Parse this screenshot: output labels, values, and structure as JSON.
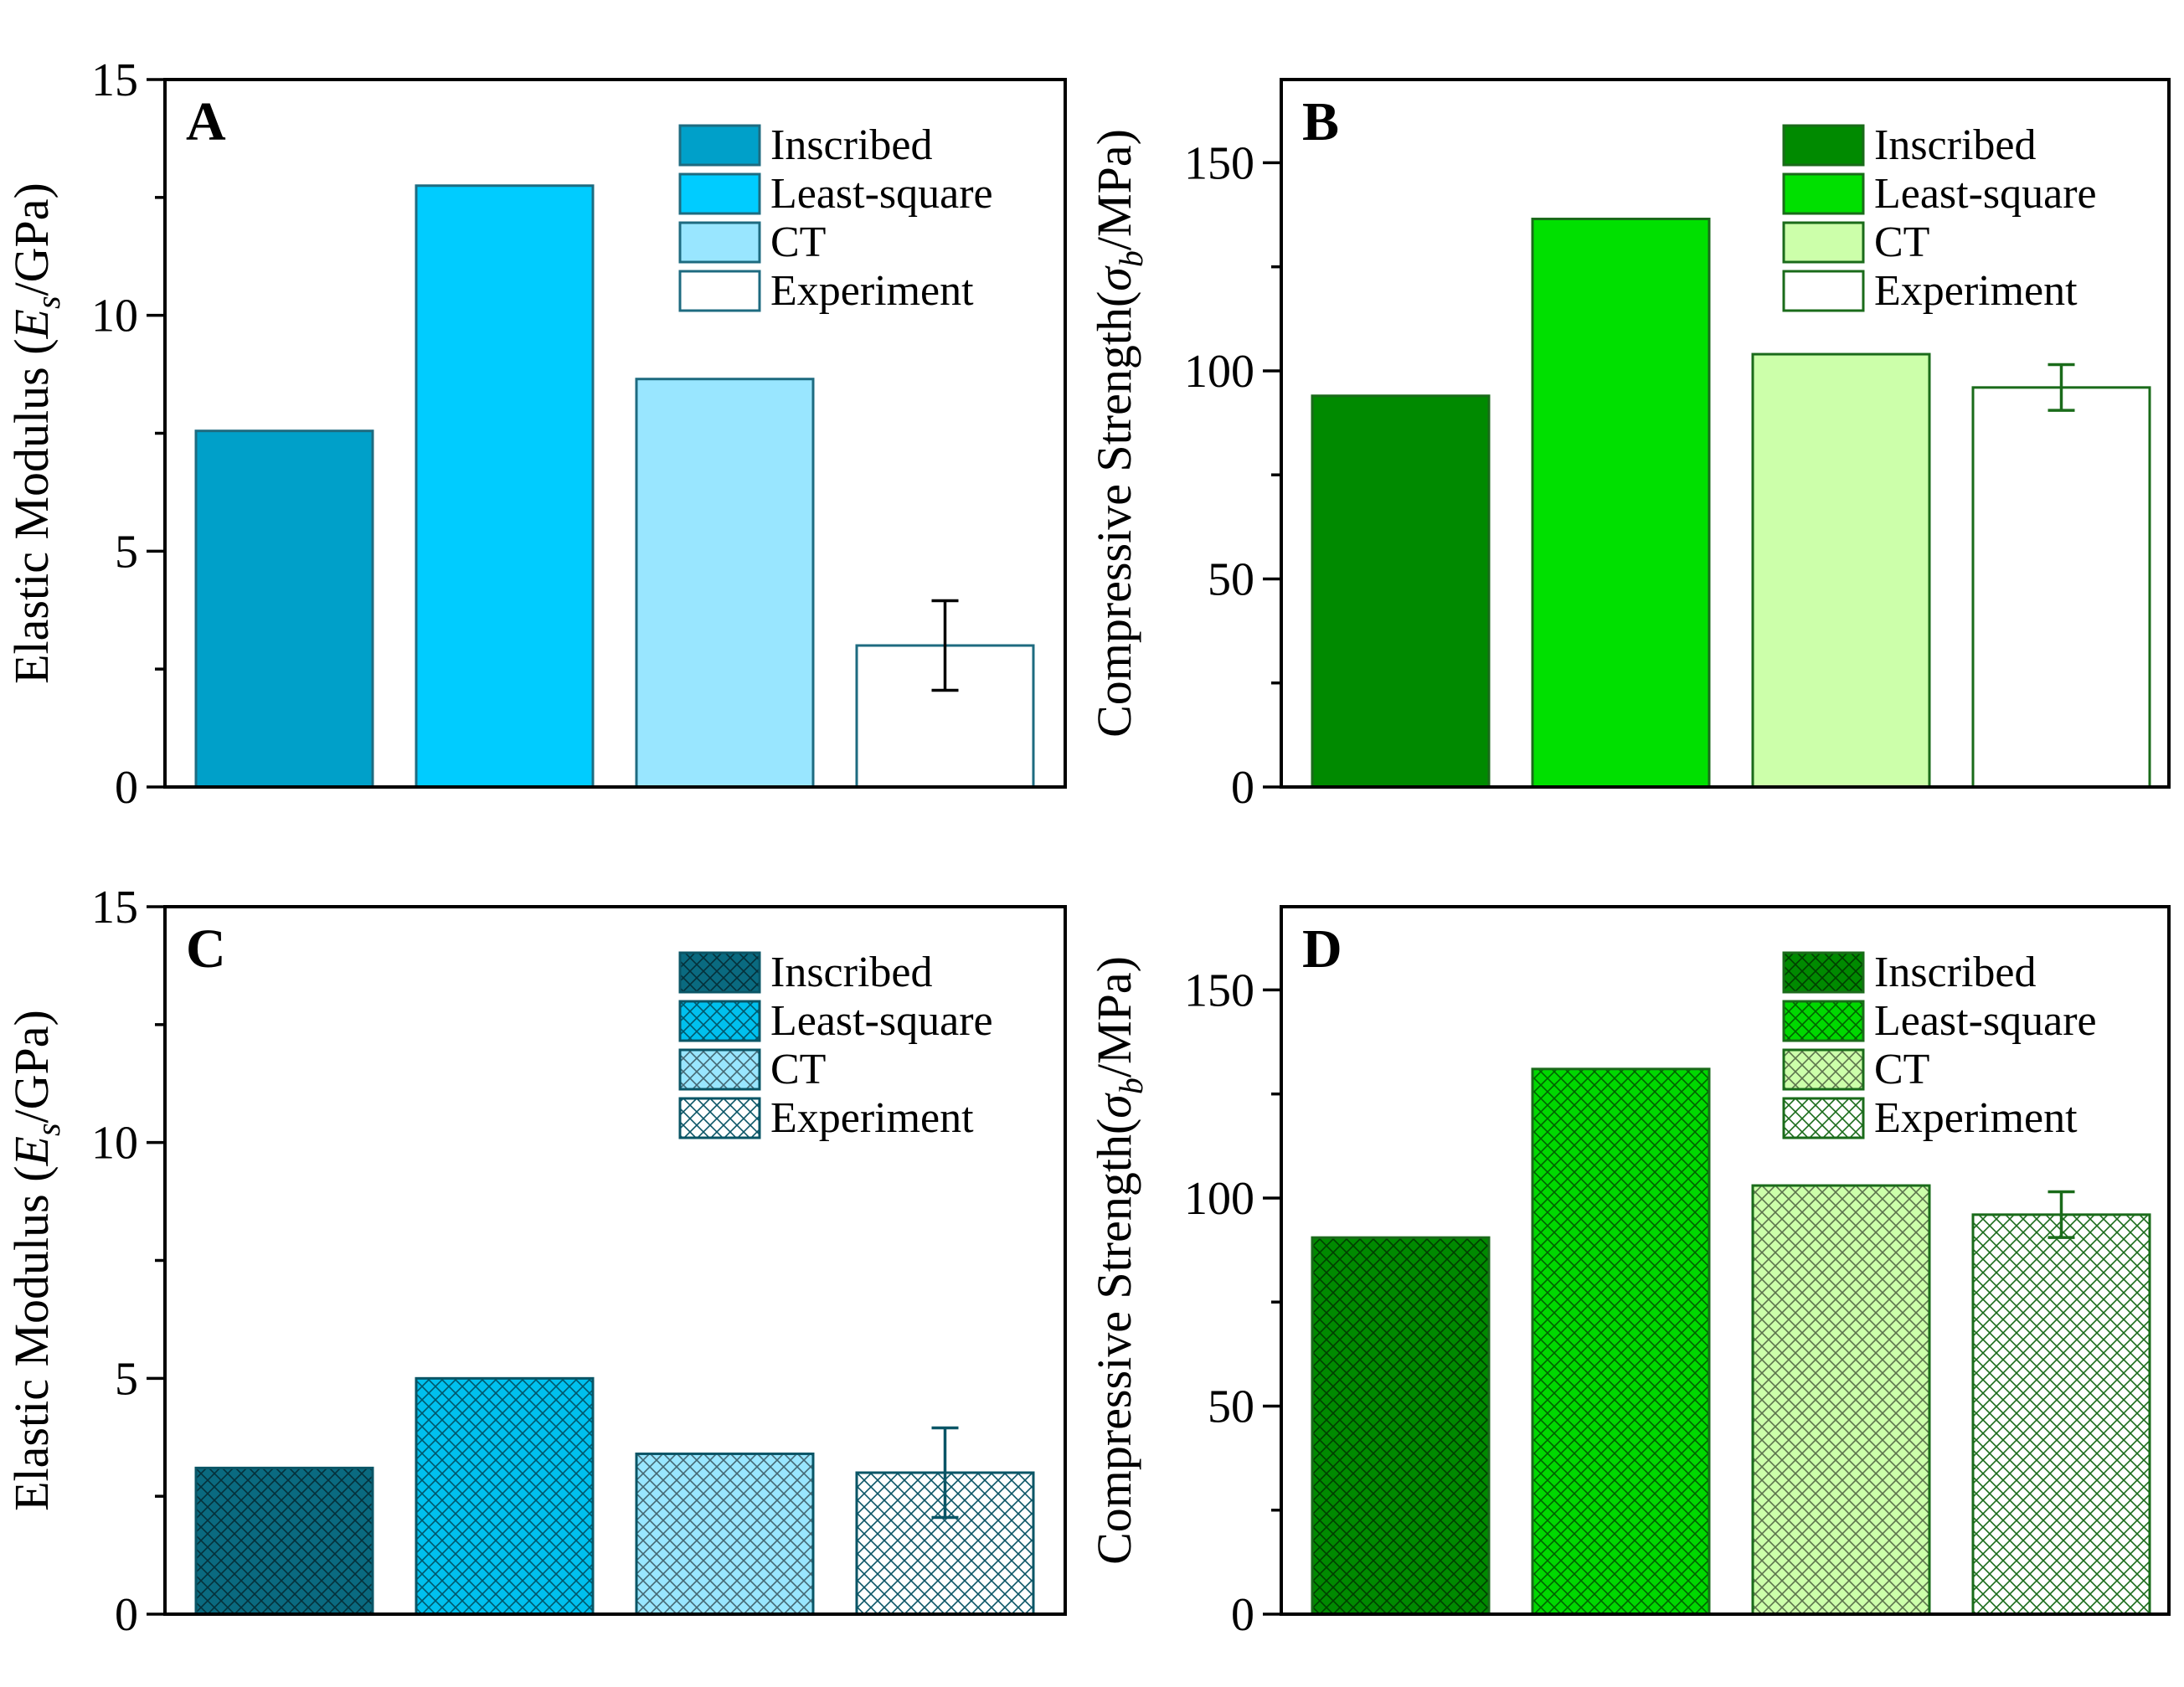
{
  "chart_data": [
    {
      "panel": "A",
      "type": "bar",
      "ylabel": [
        "Elastic Modulus (",
        "E",
        "s",
        "/GPa)"
      ],
      "ylim": [
        0,
        15
      ],
      "yticks": [
        0,
        5,
        10,
        15
      ],
      "categories": [
        "Inscribed",
        "Least-square",
        "CT",
        "Experiment"
      ],
      "values": [
        7.55,
        12.75,
        8.65,
        3.0
      ],
      "error": [
        null,
        null,
        null,
        0.95
      ],
      "colors": [
        "#00a0c9",
        "#00ccff",
        "#99e6ff",
        "#ffffff"
      ],
      "edge": "#1e6b80",
      "err_color": "#000000",
      "hatch": false,
      "legend": [
        "Inscribed",
        "Least-square",
        "CT",
        "Experiment"
      ]
    },
    {
      "panel": "B",
      "type": "bar",
      "ylabel": [
        "Compressive Strength(",
        "σ",
        "b",
        "/MPa)"
      ],
      "ylim": [
        0,
        170
      ],
      "yticks": [
        0,
        50,
        100,
        150
      ],
      "categories": [
        "Inscribed",
        "Least-square",
        "CT",
        "Experiment"
      ],
      "values": [
        94,
        136.5,
        104,
        96
      ],
      "error": [
        null,
        null,
        null,
        5.5
      ],
      "colors": [
        "#008a00",
        "#00e000",
        "#ccffaa",
        "#ffffff"
      ],
      "edge": "#1a6b1a",
      "err_color": "#1a6b1a",
      "hatch": false,
      "legend": [
        "Inscribed",
        "Least-square",
        "CT",
        "Experiment"
      ]
    },
    {
      "panel": "C",
      "type": "bar",
      "ylabel": [
        "Elastic Modulus (",
        "E",
        "s",
        "/GPa)"
      ],
      "ylim": [
        0,
        15
      ],
      "yticks": [
        0,
        5,
        10,
        15
      ],
      "categories": [
        "Inscribed",
        "Least-square",
        "CT",
        "Experiment"
      ],
      "values": [
        3.1,
        5.0,
        3.4,
        3.0
      ],
      "error": [
        null,
        null,
        null,
        0.95
      ],
      "colors": [
        "#0a6a80",
        "#00c0ee",
        "#99e6ff",
        "#ffffff"
      ],
      "edge": "#0a5566",
      "err_color": "#0a5566",
      "hatch": true,
      "legend": [
        "Inscribed",
        "Least-square",
        "CT",
        "Experiment"
      ]
    },
    {
      "panel": "D",
      "type": "bar",
      "ylabel": [
        "Compressive Strength(",
        "σ",
        "b",
        "/MPa)"
      ],
      "ylim": [
        0,
        170
      ],
      "yticks": [
        0,
        50,
        100,
        150
      ],
      "categories": [
        "Inscribed",
        "Least-square",
        "CT",
        "Experiment"
      ],
      "values": [
        90.5,
        131,
        103,
        96
      ],
      "error": [
        null,
        null,
        null,
        5.5
      ],
      "colors": [
        "#008a00",
        "#00d800",
        "#ccffaa",
        "#ffffff"
      ],
      "edge": "#1a6b1a",
      "err_color": "#1a6b1a",
      "hatch": true,
      "legend": [
        "Inscribed",
        "Least-square",
        "CT",
        "Experiment"
      ]
    }
  ]
}
